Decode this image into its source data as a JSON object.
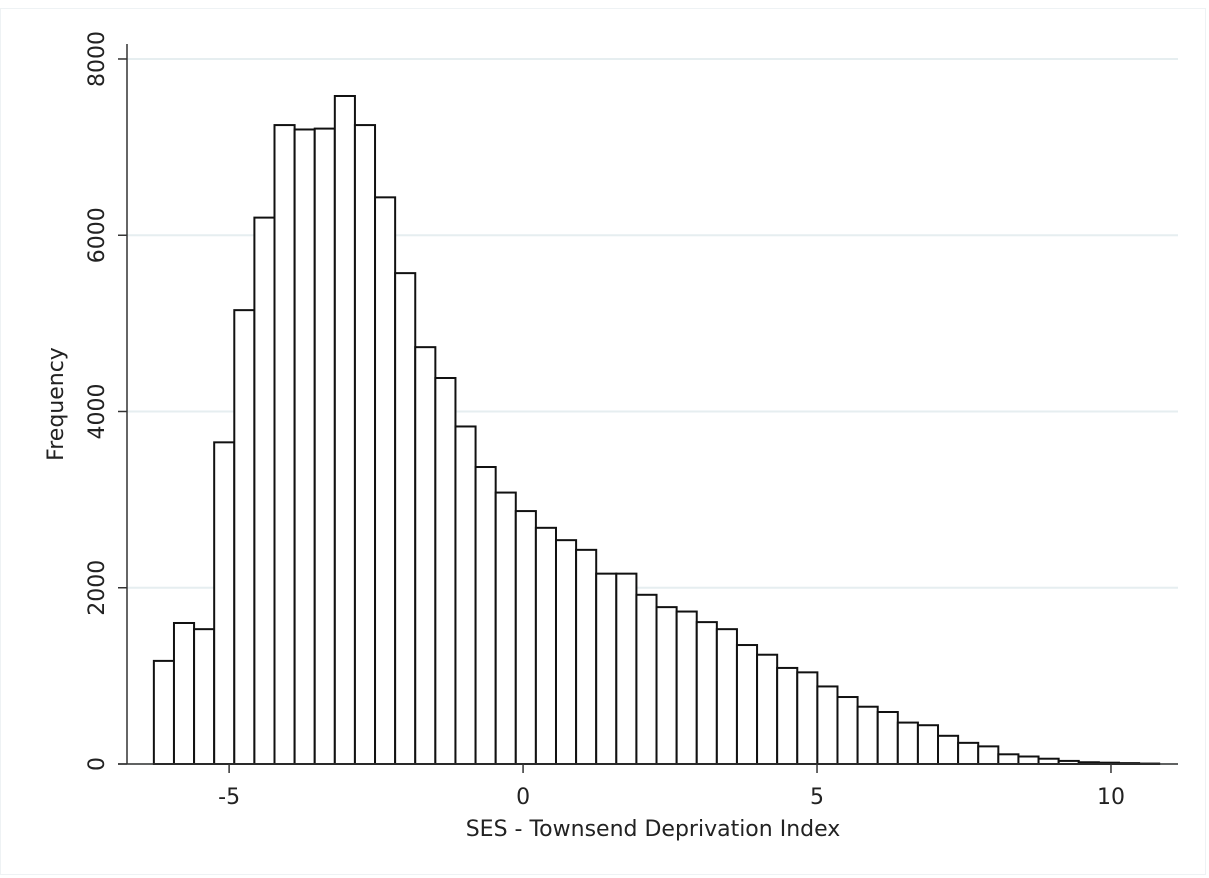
{
  "chart_data": {
    "type": "histogram",
    "x_label": "SES - Townsend Deprivation Index",
    "y_label": "Frequency",
    "bins": [
      -6.28,
      -5.938,
      -5.596,
      -5.254,
      -4.912,
      -4.57,
      -4.228,
      -3.886,
      -3.544,
      -3.202,
      -2.86,
      -2.518,
      -2.176,
      -1.834,
      -1.492,
      -1.15,
      -0.808,
      -0.466,
      -0.124,
      0.218,
      0.56,
      0.902,
      1.244,
      1.586,
      1.928,
      2.27,
      2.612,
      2.954,
      3.296,
      3.638,
      3.98,
      4.322,
      4.664,
      5.006,
      5.348,
      5.69,
      6.032,
      6.374,
      6.716,
      7.058,
      7.4,
      7.742,
      8.084,
      8.426,
      8.768,
      9.11,
      9.452,
      9.794,
      10.136,
      10.478,
      10.82
    ],
    "values": [
      1170,
      1600,
      1530,
      3650,
      5150,
      6200,
      7250,
      7200,
      7210,
      7580,
      7250,
      6430,
      5570,
      4730,
      4380,
      3830,
      3370,
      3080,
      2870,
      2680,
      2540,
      2430,
      2160,
      2160,
      1920,
      1780,
      1730,
      1610,
      1530,
      1350,
      1240,
      1090,
      1040,
      880,
      760,
      650,
      590,
      470,
      440,
      320,
      240,
      200,
      110,
      85,
      60,
      35,
      20,
      15,
      10,
      5
    ],
    "color": "#ffffff",
    "edge_color": "#111111",
    "xlim": [
      -6.89,
      11.14
    ],
    "xticks": [
      -5,
      0,
      5,
      10
    ],
    "ylim": [
      0,
      8170
    ],
    "yticks": [
      0,
      2000,
      4000,
      6000,
      8000
    ],
    "grid": true
  }
}
